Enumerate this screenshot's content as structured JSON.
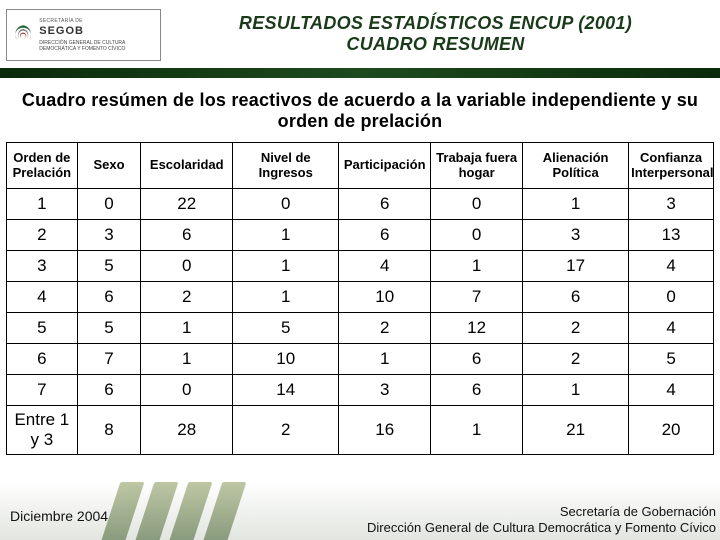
{
  "header": {
    "org_small": "SECRETARÍA DE",
    "org_big": "SEGOB",
    "org_sub": "DIRECCIÓN GENERAL DE CULTURA\nDEMOCRÁTICA Y FOMENTO CÍVICO",
    "title1": "RESULTADOS ESTADÍSTICOS ENCUP (2001)",
    "title2": "CUADRO RESUMEN"
  },
  "table": {
    "title": "Cuadro resúmen de los reactivos de acuerdo a la variable independiente y su orden de prelación",
    "columns": [
      "Orden de Prelación",
      "Sexo",
      "Escolaridad",
      "Nivel de Ingresos",
      "Participación",
      "Trabaja fuera hogar",
      "Alienación Política",
      "Confianza Interpersonal"
    ],
    "rows": [
      [
        "1",
        "0",
        "22",
        "0",
        "6",
        "0",
        "1",
        "3"
      ],
      [
        "2",
        "3",
        "6",
        "1",
        "6",
        "0",
        "3",
        "13"
      ],
      [
        "3",
        "5",
        "0",
        "1",
        "4",
        "1",
        "17",
        "4"
      ],
      [
        "4",
        "6",
        "2",
        "1",
        "10",
        "7",
        "6",
        "0"
      ],
      [
        "5",
        "5",
        "1",
        "5",
        "2",
        "12",
        "2",
        "4"
      ],
      [
        "6",
        "7",
        "1",
        "10",
        "1",
        "6",
        "2",
        "5"
      ],
      [
        "7",
        "6",
        "0",
        "14",
        "3",
        "6",
        "1",
        "4"
      ],
      [
        "Entre 1 y 3",
        "8",
        "28",
        "2",
        "16",
        "1",
        "21",
        "20"
      ]
    ],
    "col_widths_pct": [
      10,
      9,
      13,
      15,
      13,
      13,
      15,
      12
    ],
    "border_color": "#000000",
    "background_color": "#ffffff",
    "header_fontsize": 13,
    "cell_fontsize": 17,
    "font_family": "Arial Narrow"
  },
  "footer": {
    "left": "Diciembre  2004",
    "right1": "Secretaría de Gobernación",
    "right2": "Dirección General de Cultura Democrática y Fomento Cívico"
  },
  "colors": {
    "title_text": "#1a3a1a",
    "green_bar_dark": "#0a2a0a",
    "green_bar_mid": "#1e4a1e",
    "footer_stripe_dark": "#3a5a2a",
    "footer_stripe_light": "#8a9a5a",
    "logo_green": "#2a6a3a",
    "logo_red": "#a03030",
    "logo_gray": "#808080"
  }
}
